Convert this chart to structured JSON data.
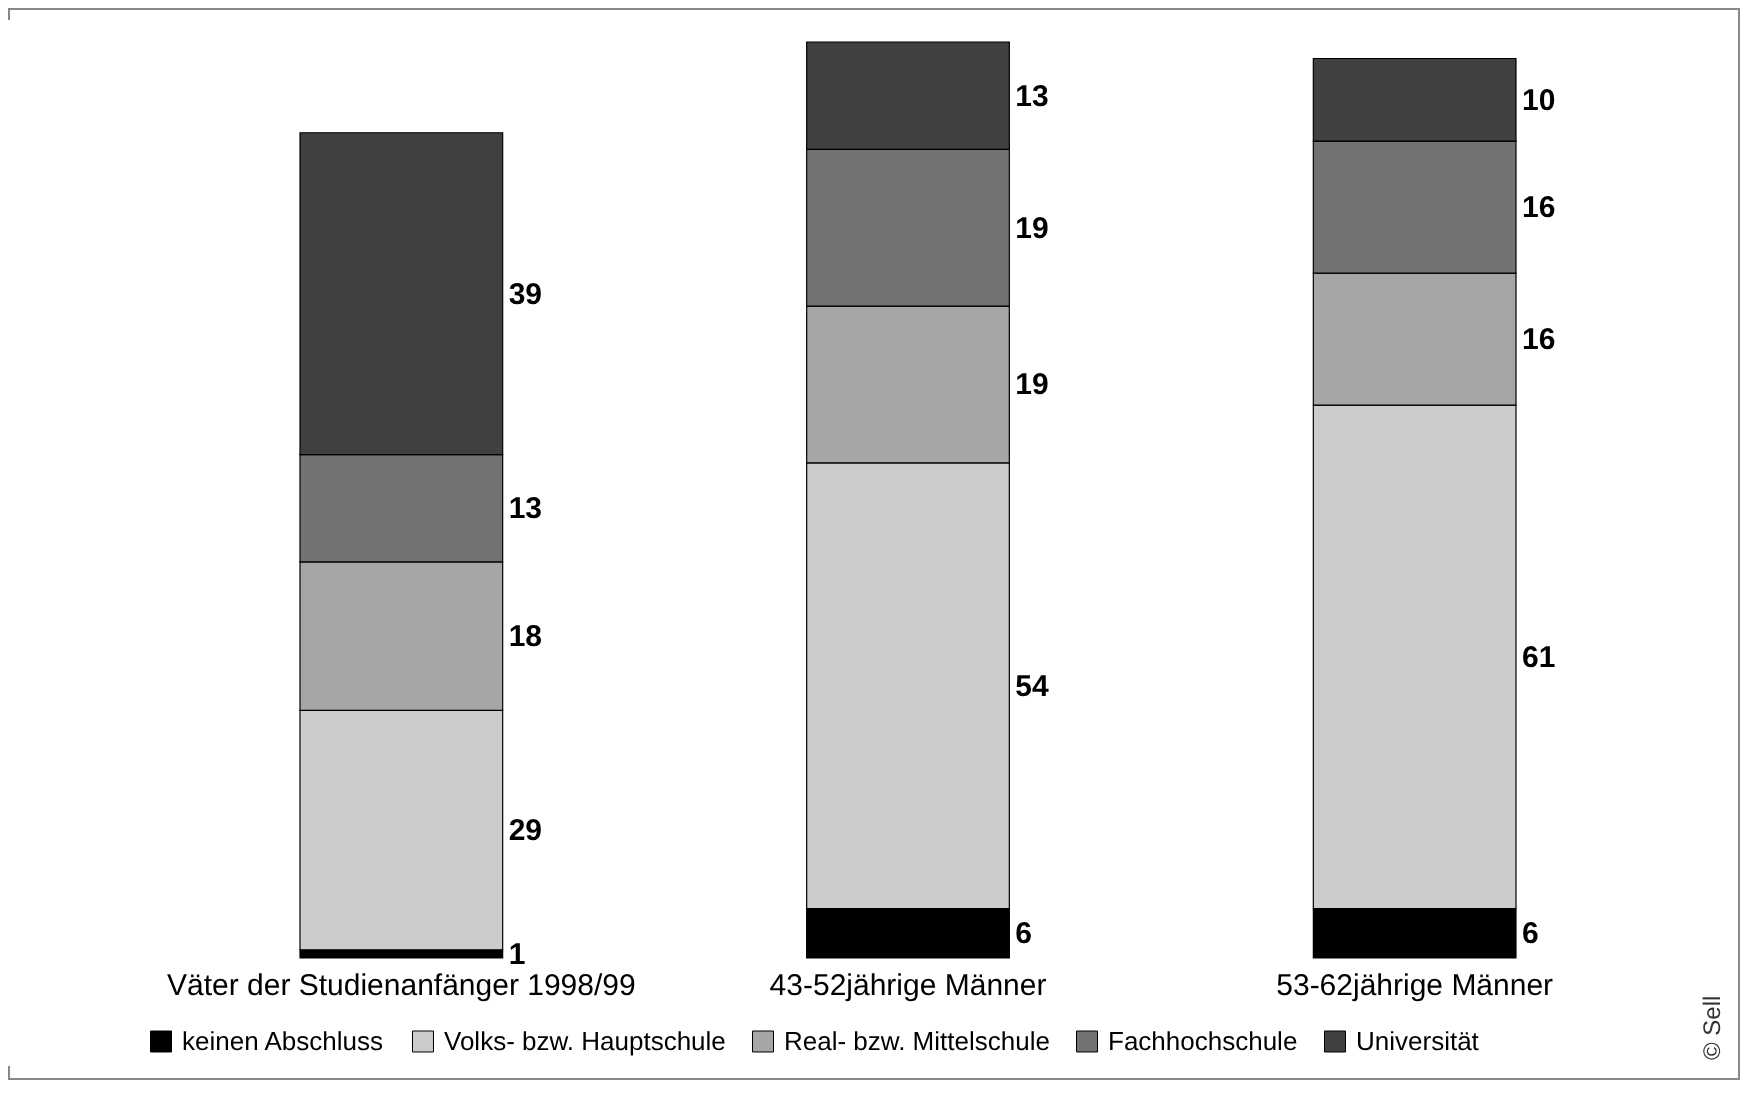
{
  "chart_data": {
    "type": "bar",
    "stacked": true,
    "data_labels": true,
    "legend": "bottom",
    "grid": false,
    "categories": [
      "Väter der Studienanfänger 1998/99",
      "43-52jährige Männer",
      "53-62jährige Männer"
    ],
    "series": [
      {
        "name": "keinen Abschluss",
        "color": "#000000",
        "values": [
          1,
          6,
          6
        ]
      },
      {
        "name": "Volks- bzw. Hauptschule",
        "color": "#cccccc",
        "values": [
          29,
          54,
          61
        ]
      },
      {
        "name": "Real- bzw. Mittelschule",
        "color": "#a6a6a6",
        "values": [
          18,
          19,
          16
        ]
      },
      {
        "name": "Fachhochschule",
        "color": "#737373",
        "values": [
          13,
          19,
          16
        ]
      },
      {
        "name": "Universität",
        "color": "#404040",
        "values": [
          39,
          13,
          10
        ]
      }
    ],
    "annotations": [
      "© Sell"
    ]
  }
}
